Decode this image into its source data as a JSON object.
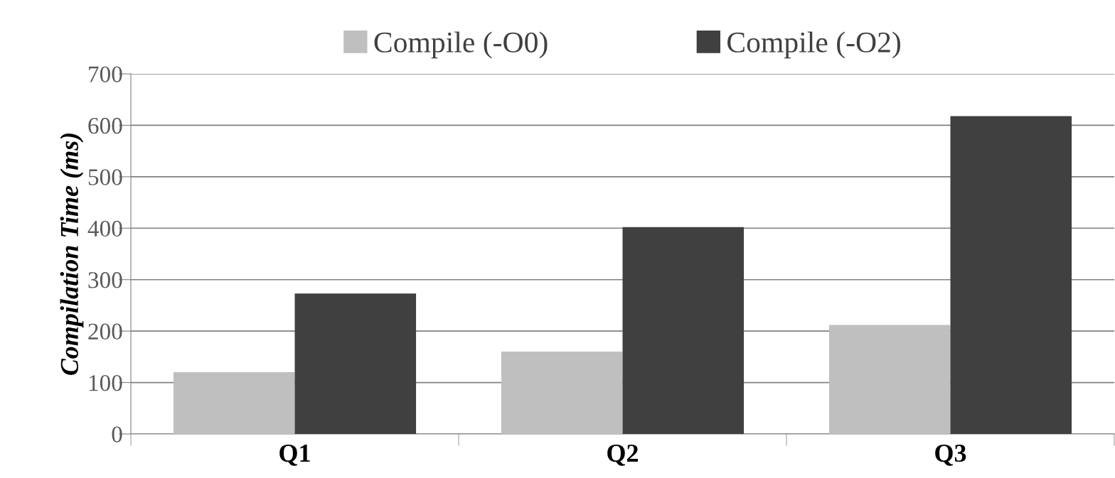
{
  "chart_data": {
    "type": "bar",
    "ylabel": "Compilation Time (ms)",
    "categories": [
      "Q1",
      "Q2",
      "Q3"
    ],
    "series": [
      {
        "name": "Compile (-O0)",
        "color": "#bfbfbf",
        "values": [
          120,
          160,
          212
        ]
      },
      {
        "name": "Compile (-O2)",
        "color": "#404040",
        "values": [
          273,
          402,
          618
        ]
      }
    ],
    "ylim": [
      0,
      700
    ],
    "yticks": [
      0,
      100,
      200,
      300,
      400,
      500,
      600,
      700
    ],
    "grid": "y",
    "legend": "top"
  }
}
